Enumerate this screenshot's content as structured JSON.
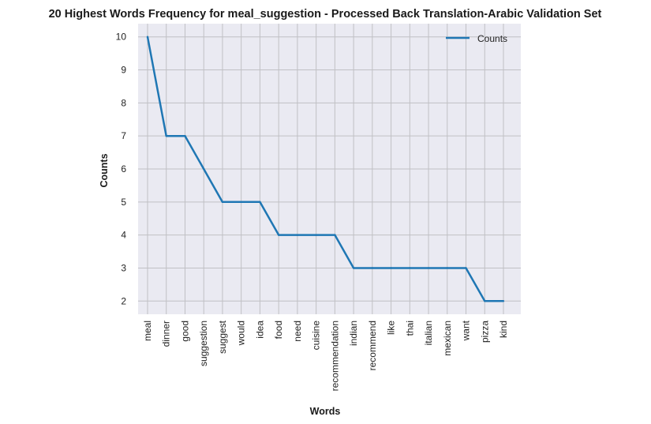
{
  "colors": {
    "plot_background": "#eaeaf2",
    "grid": "#c0c0c4",
    "line": "#1f77b4"
  },
  "chart_data": {
    "type": "line",
    "title": "20 Highest Words Frequency for meal_suggestion - Processed Back Translation-Arabic Validation Set",
    "xlabel": "Words",
    "ylabel": "Counts",
    "categories": [
      "meal",
      "dinner",
      "good",
      "suggestion",
      "suggest",
      "would",
      "idea",
      "food",
      "need",
      "cuisine",
      "recommendation",
      "indian",
      "recommend",
      "like",
      "thai",
      "italian",
      "mexican",
      "want",
      "pizza",
      "kind"
    ],
    "series": [
      {
        "name": "Counts",
        "values": [
          10,
          7,
          7,
          6,
          5,
          5,
          5,
          4,
          4,
          4,
          4,
          3,
          3,
          3,
          3,
          3,
          3,
          3,
          2,
          2
        ]
      }
    ],
    "yticks": [
      2,
      3,
      4,
      5,
      6,
      7,
      8,
      9,
      10
    ],
    "ylim": [
      1.6,
      10.4
    ],
    "grid": true,
    "legend_position": "top-right"
  }
}
